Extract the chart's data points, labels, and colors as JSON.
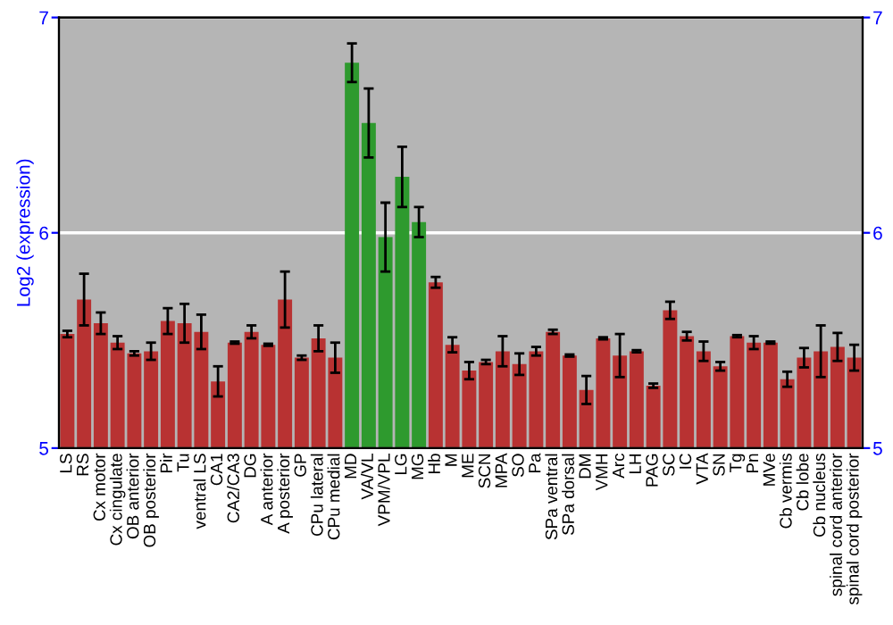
{
  "chart_data": {
    "type": "bar",
    "ylabel": "Log2 (expression)",
    "categories": [
      "LS",
      "RS",
      "Cx motor",
      "Cx cingulate",
      "OB anterior",
      "OB posterior",
      "Pir",
      "Tu",
      "ventral LS",
      "CA1",
      "CA2/CA3",
      "DG",
      "A anterior",
      "A posterior",
      "GP",
      "CPu lateral",
      "CPu medial",
      "MD",
      "VA/VL",
      "VPM/VPL",
      "LG",
      "MG",
      "Hb",
      "M",
      "ME",
      "SCN",
      "MPA",
      "SO",
      "Pa",
      "SPa ventral",
      "SPa dorsal",
      "DM",
      "VMH",
      "Arc",
      "LH",
      "PAG",
      "SC",
      "IC",
      "VTA",
      "SN",
      "Tg",
      "Pn",
      "MVe",
      "Cb vermis",
      "Cb lobe",
      "Cb nucleus",
      "spinal cord anterior",
      "spinal cord posterior"
    ],
    "values": [
      5.53,
      5.69,
      5.58,
      5.49,
      5.44,
      5.45,
      5.59,
      5.58,
      5.54,
      5.31,
      5.49,
      5.54,
      5.48,
      5.69,
      5.42,
      5.51,
      5.42,
      6.79,
      6.51,
      5.98,
      6.26,
      6.05,
      5.77,
      5.48,
      5.36,
      5.4,
      5.45,
      5.39,
      5.45,
      5.54,
      5.43,
      5.27,
      5.51,
      5.43,
      5.45,
      5.29,
      5.64,
      5.52,
      5.45,
      5.38,
      5.52,
      5.49,
      5.49,
      5.32,
      5.42,
      5.45,
      5.47,
      5.42
    ],
    "errors": [
      0.015,
      0.12,
      0.05,
      0.03,
      0.01,
      0.04,
      0.06,
      0.09,
      0.08,
      0.07,
      0.005,
      0.03,
      0.005,
      0.13,
      0.01,
      0.06,
      0.07,
      0.09,
      0.16,
      0.16,
      0.14,
      0.07,
      0.025,
      0.035,
      0.04,
      0.01,
      0.07,
      0.05,
      0.02,
      0.01,
      0.005,
      0.065,
      0.005,
      0.1,
      0.005,
      0.01,
      0.04,
      0.02,
      0.045,
      0.02,
      0.005,
      0.03,
      0.005,
      0.035,
      0.045,
      0.12,
      0.065,
      0.06
    ],
    "colors": [
      "#b83232",
      "#b83232",
      "#b83232",
      "#b83232",
      "#b83232",
      "#b83232",
      "#b83232",
      "#b83232",
      "#b83232",
      "#b83232",
      "#b83232",
      "#b83232",
      "#b83232",
      "#b83232",
      "#b83232",
      "#b83232",
      "#b83232",
      "#2e9a2e",
      "#2e9a2e",
      "#2e9a2e",
      "#2e9a2e",
      "#2e9a2e",
      "#b83232",
      "#b83232",
      "#b83232",
      "#b83232",
      "#b83232",
      "#b83232",
      "#b83232",
      "#b83232",
      "#b83232",
      "#b83232",
      "#b83232",
      "#b83232",
      "#b83232",
      "#b83232",
      "#b83232",
      "#b83232",
      "#b83232",
      "#b83232",
      "#b83232",
      "#b83232",
      "#b83232",
      "#b83232",
      "#b83232",
      "#b83232",
      "#b83232",
      "#b83232"
    ],
    "ylim": [
      5,
      7
    ],
    "yticks": [
      5,
      6,
      7
    ],
    "y2lim": [
      5,
      7
    ],
    "y2ticks": [
      5,
      6,
      7
    ],
    "grid": "y",
    "legend": false
  }
}
